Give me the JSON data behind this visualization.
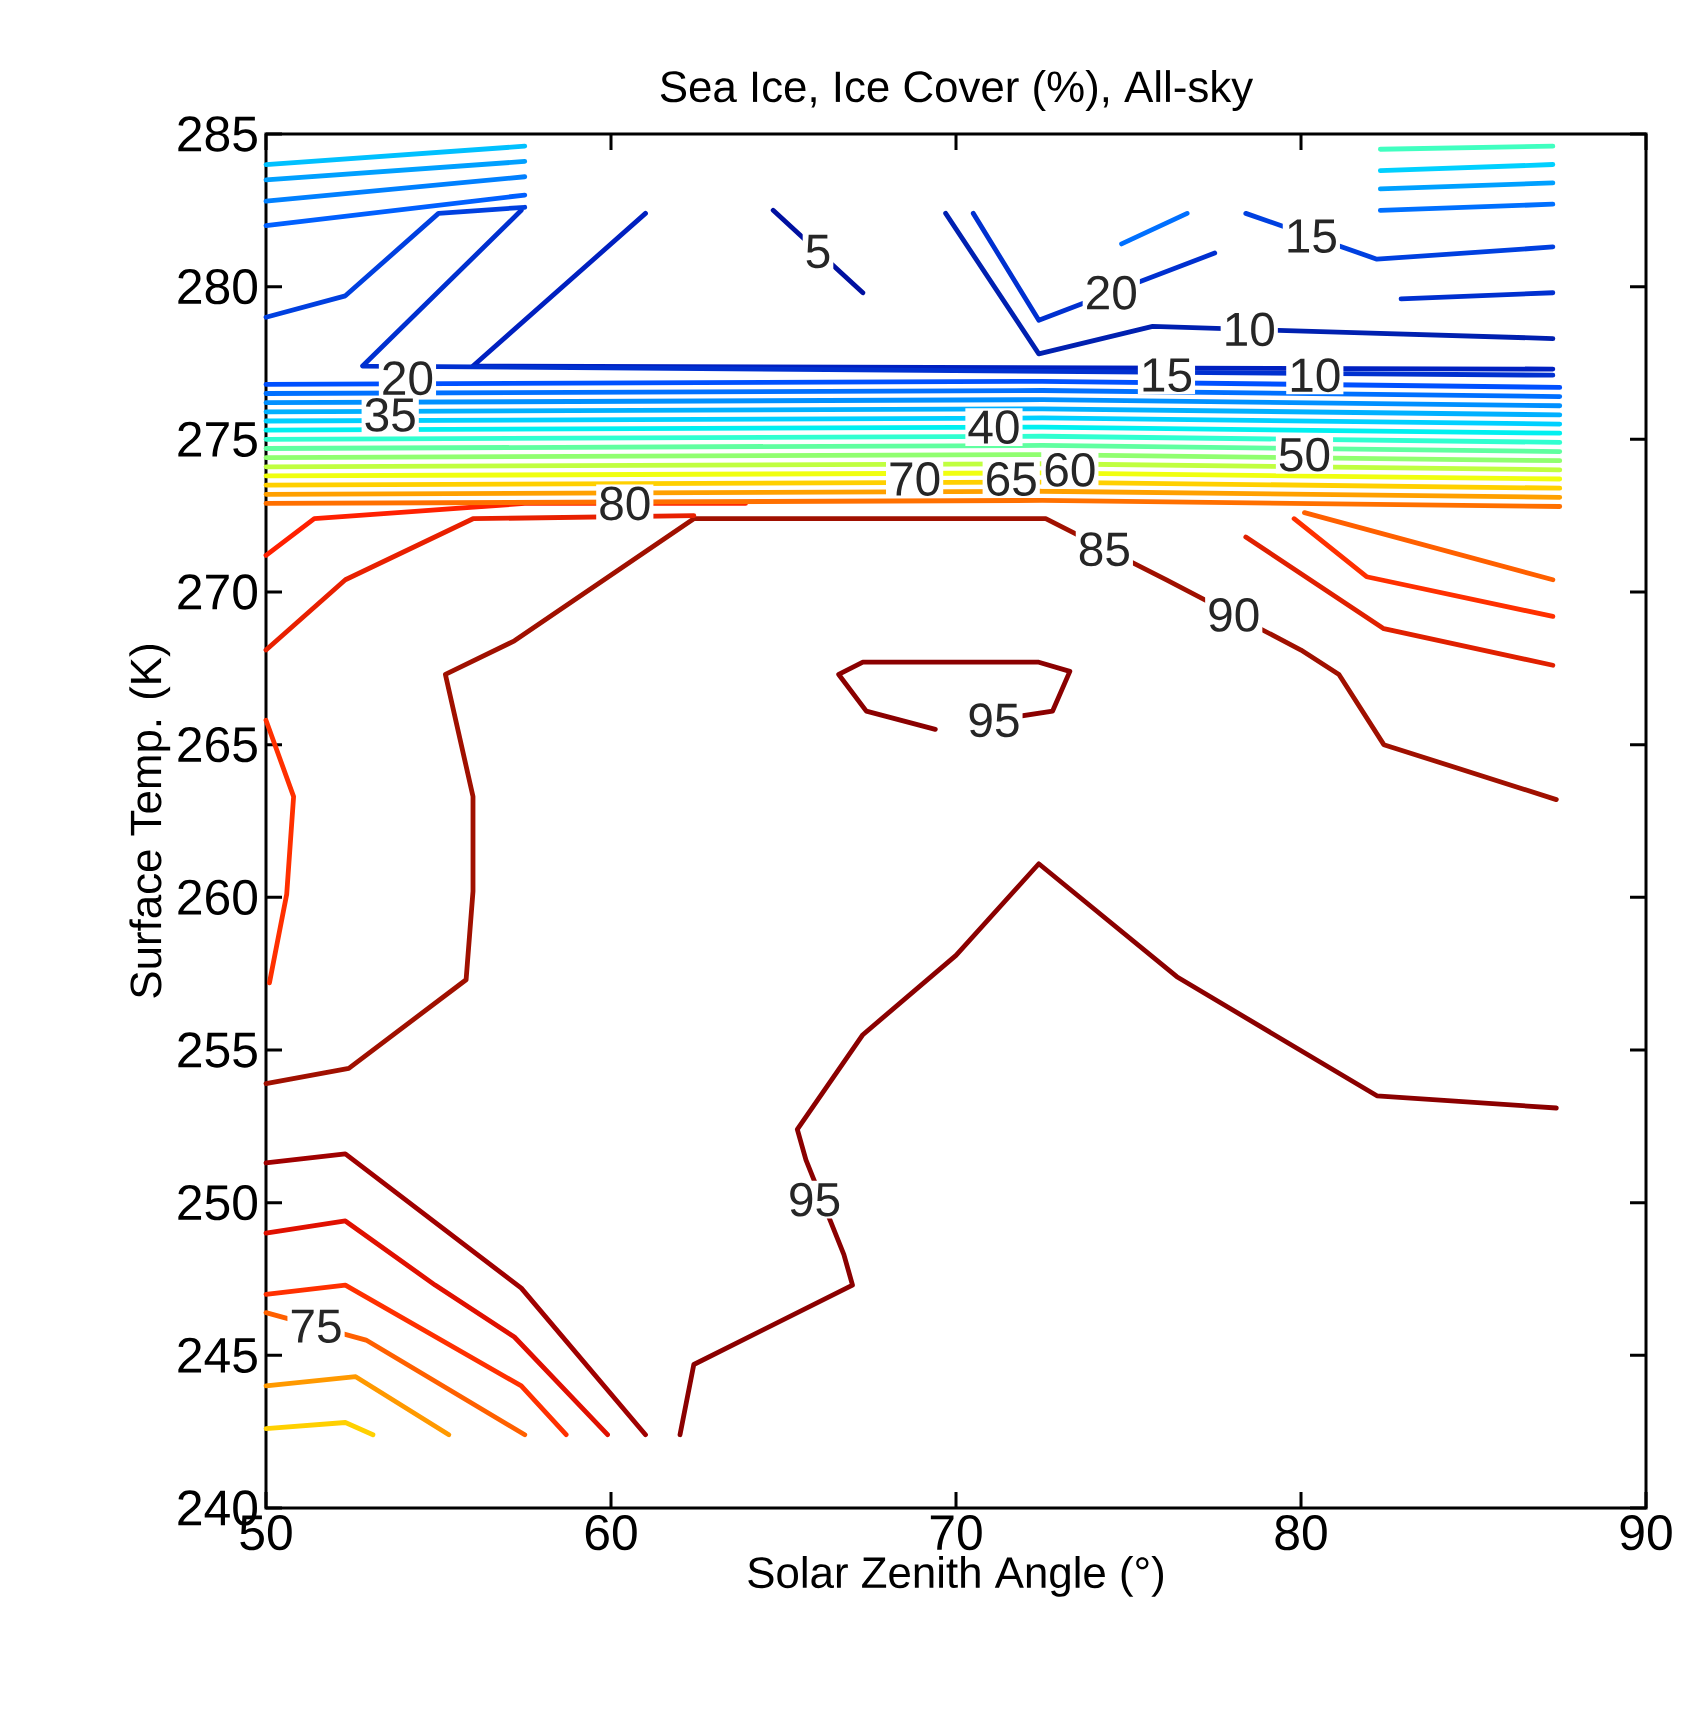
{
  "chart_data": {
    "type": "line",
    "title": "Sea Ice, Ice Cover (%), All-sky",
    "xlabel": "Solar Zenith Angle (°)",
    "ylabel": "Surface Temp. (K)",
    "xlim": [
      50,
      90
    ],
    "ylim": [
      240,
      285
    ],
    "xticks": [
      50,
      60,
      70,
      80,
      90
    ],
    "yticks": [
      240,
      245,
      250,
      255,
      260,
      265,
      270,
      275,
      280,
      285
    ],
    "series": [
      {
        "color": "#8b0000",
        "x": [
          62.0,
          62.4,
          67.0,
          66.75,
          65.65,
          65.4,
          67.3,
          70.0,
          72.4,
          76.4,
          82.2,
          87.4
        ],
        "values": [
          242.4,
          244.7,
          247.3,
          248.3,
          251.4,
          252.4,
          255.5,
          258.1,
          261.1,
          257.4,
          253.5,
          253.1
        ]
      },
      {
        "color": "#8b0000",
        "x": [
          69.4,
          67.4,
          66.6,
          67.3,
          72.4,
          73.3,
          72.8,
          71.1
        ],
        "values": [
          265.5,
          266.1,
          267.3,
          267.7,
          267.7,
          267.4,
          266.1,
          265.8
        ]
      },
      {
        "color": "#a01000",
        "x": [
          50,
          52.4,
          55.8,
          56.0,
          56.0,
          55.2,
          57.2,
          62.4,
          72.6,
          76.1,
          80.0,
          81.1,
          82.4,
          87.4
        ],
        "values": [
          253.9,
          254.4,
          257.3,
          260.2,
          263.3,
          267.3,
          268.4,
          272.4,
          272.4,
          270.4,
          268.1,
          267.3,
          265.0,
          263.2
        ]
      },
      {
        "color": "#e02000",
        "x": [
          78.4,
          82.4,
          87.3
        ],
        "values": [
          271.8,
          268.8,
          267.6
        ]
      },
      {
        "color": "#ff3000",
        "x": [
          79.8,
          81.9,
          87.3
        ],
        "values": [
          272.4,
          270.5,
          269.2
        ]
      },
      {
        "color": "#ff6000",
        "x": [
          80.1,
          87.3
        ],
        "values": [
          272.6,
          270.4
        ]
      },
      {
        "color": "#ff2000",
        "x": [
          50,
          51.4,
          57.5,
          63.9
        ],
        "values": [
          271.2,
          272.4,
          272.9,
          272.9
        ]
      },
      {
        "color": "#e82000",
        "x": [
          50,
          52.3,
          56.0,
          62.4
        ],
        "values": [
          268.1,
          270.4,
          272.4,
          272.5
        ]
      },
      {
        "color": "#ff3000",
        "x": [
          50,
          50.8,
          50.6,
          50.1
        ],
        "values": [
          265.8,
          263.3,
          260.1,
          257.2
        ]
      },
      {
        "color": "#a00000",
        "x": [
          50,
          52.3,
          57.4,
          61.0
        ],
        "values": [
          251.3,
          251.6,
          247.2,
          242.4
        ]
      },
      {
        "color": "#e01000",
        "x": [
          50,
          52.3,
          54.9,
          57.2,
          59.9
        ],
        "values": [
          249.0,
          249.4,
          247.3,
          245.6,
          242.4
        ]
      },
      {
        "color": "#ff3000",
        "x": [
          50,
          52.3,
          57.4,
          58.7
        ],
        "values": [
          247.0,
          247.3,
          244.0,
          242.4
        ]
      },
      {
        "color": "#ff6000",
        "x": [
          50,
          52.9,
          57.5
        ],
        "values": [
          246.4,
          245.5,
          242.4
        ]
      },
      {
        "color": "#ff9900",
        "x": [
          50,
          52.6,
          55.3
        ],
        "values": [
          244.0,
          244.3,
          242.4
        ]
      },
      {
        "color": "#ffd000",
        "x": [
          50,
          52.3,
          53.1
        ],
        "values": [
          242.6,
          242.8,
          242.4
        ]
      },
      {
        "color": "#0010a0",
        "x": [
          64.7,
          67.3
        ],
        "values": [
          282.5,
          279.8
        ]
      },
      {
        "color": "#0020c0",
        "x": [
          61.0,
          56.0,
          87.3
        ],
        "values": [
          282.4,
          277.4,
          277.3
        ]
      },
      {
        "color": "#0030d0",
        "x": [
          57.4,
          52.8,
          87.3
        ],
        "values": [
          282.5,
          277.4,
          277.1
        ]
      },
      {
        "color": "#0040e0",
        "x": [
          50,
          52.3,
          55.0,
          57.5
        ],
        "values": [
          279.0,
          279.7,
          282.4,
          282.6
        ]
      },
      {
        "color": "#0060ff",
        "x": [
          50,
          57.5
        ],
        "values": [
          282.0,
          283.0
        ]
      },
      {
        "color": "#0080ff",
        "x": [
          50,
          57.5
        ],
        "values": [
          282.8,
          283.6
        ]
      },
      {
        "color": "#00a0ff",
        "x": [
          50,
          57.5
        ],
        "values": [
          283.5,
          284.1
        ]
      },
      {
        "color": "#00c0ff",
        "x": [
          50,
          57.5
        ],
        "values": [
          284.0,
          284.6
        ]
      },
      {
        "color": "#0020b0",
        "x": [
          69.7,
          72.4,
          75.7,
          81.3,
          87.3
        ],
        "values": [
          282.4,
          277.8,
          278.7,
          278.5,
          278.3
        ]
      },
      {
        "color": "#0030d0",
        "x": [
          70.5,
          72.4,
          77.5
        ],
        "values": [
          282.4,
          278.9,
          281.1
        ]
      },
      {
        "color": "#0070ff",
        "x": [
          74.8,
          76.7
        ],
        "values": [
          281.4,
          282.4
        ]
      },
      {
        "color": "#0040e0",
        "x": [
          78.4,
          82.2,
          87.3
        ],
        "values": [
          282.4,
          280.9,
          281.3
        ]
      },
      {
        "color": "#0030d0",
        "x": [
          82.9,
          87.3
        ],
        "values": [
          279.6,
          279.8
        ]
      },
      {
        "color": "#0070ff",
        "x": [
          82.3,
          87.3
        ],
        "values": [
          282.5,
          282.7
        ]
      },
      {
        "color": "#00a0ff",
        "x": [
          82.3,
          87.3
        ],
        "values": [
          283.2,
          283.4
        ]
      },
      {
        "color": "#00d0ff",
        "x": [
          82.3,
          87.3
        ],
        "values": [
          283.8,
          284.0
        ]
      },
      {
        "color": "#40ffc0",
        "x": [
          82.3,
          87.3
        ],
        "values": [
          284.5,
          284.6
        ]
      },
      {
        "color": "#0050ff",
        "x": [
          50,
          72.5,
          87.5
        ],
        "values": [
          276.8,
          276.9,
          276.7
        ]
      },
      {
        "color": "#0070ff",
        "x": [
          50,
          72.5,
          87.5
        ],
        "values": [
          276.5,
          276.6,
          276.4
        ]
      },
      {
        "color": "#0090ff",
        "x": [
          50,
          72.5,
          87.5
        ],
        "values": [
          276.2,
          276.3,
          276.1
        ]
      },
      {
        "color": "#00b0ff",
        "x": [
          50,
          72.5,
          87.5
        ],
        "values": [
          275.9,
          276.0,
          275.8
        ]
      },
      {
        "color": "#00d0ff",
        "x": [
          50,
          72.5,
          87.5
        ],
        "values": [
          275.6,
          275.7,
          275.5
        ]
      },
      {
        "color": "#00f0f0",
        "x": [
          50,
          72.5,
          87.5
        ],
        "values": [
          275.3,
          275.4,
          275.2
        ]
      },
      {
        "color": "#30ffd0",
        "x": [
          50,
          72.5,
          87.5
        ],
        "values": [
          275.0,
          275.1,
          274.9
        ]
      },
      {
        "color": "#60ffa0",
        "x": [
          50,
          72.5,
          87.5
        ],
        "values": [
          274.7,
          274.8,
          274.6
        ]
      },
      {
        "color": "#90ff70",
        "x": [
          50,
          72.5,
          87.5
        ],
        "values": [
          274.4,
          274.5,
          274.3
        ]
      },
      {
        "color": "#c0ff40",
        "x": [
          50,
          72.5,
          87.5
        ],
        "values": [
          274.1,
          274.2,
          274.0
        ]
      },
      {
        "color": "#f0ff10",
        "x": [
          50,
          72.5,
          87.5
        ],
        "values": [
          273.8,
          273.9,
          273.7
        ]
      },
      {
        "color": "#ffd000",
        "x": [
          50,
          72.5,
          87.5
        ],
        "values": [
          273.5,
          273.6,
          273.4
        ]
      },
      {
        "color": "#ffa000",
        "x": [
          50,
          72.5,
          87.5
        ],
        "values": [
          273.2,
          273.3,
          273.1
        ]
      },
      {
        "color": "#ff7000",
        "x": [
          50,
          72.5,
          87.5
        ],
        "values": [
          272.9,
          273.0,
          272.8
        ]
      }
    ],
    "annotations": [
      {
        "text": "5",
        "x": 66.0,
        "y": 281.15
      },
      {
        "text": "20",
        "x": 74.5,
        "y": 279.8
      },
      {
        "text": "15",
        "x": 80.3,
        "y": 281.65
      },
      {
        "text": "10",
        "x": 78.5,
        "y": 278.6
      },
      {
        "text": "10",
        "x": 80.4,
        "y": 277.1
      },
      {
        "text": "15",
        "x": 76.1,
        "y": 277.1
      },
      {
        "text": "20",
        "x": 54.1,
        "y": 277.0
      },
      {
        "text": "35",
        "x": 53.6,
        "y": 275.8
      },
      {
        "text": "40",
        "x": 71.1,
        "y": 275.4
      },
      {
        "text": "70",
        "x": 68.8,
        "y": 273.7
      },
      {
        "text": "65",
        "x": 71.6,
        "y": 273.7
      },
      {
        "text": "60",
        "x": 73.3,
        "y": 274.0
      },
      {
        "text": "50",
        "x": 80.1,
        "y": 274.5
      },
      {
        "text": "80",
        "x": 60.4,
        "y": 272.9
      },
      {
        "text": "85",
        "x": 74.3,
        "y": 271.4
      },
      {
        "text": "90",
        "x": 78.05,
        "y": 269.25
      },
      {
        "text": "95",
        "x": 71.1,
        "y": 265.8
      },
      {
        "text": "95",
        "x": 65.9,
        "y": 250.1
      },
      {
        "text": "75",
        "x": 51.45,
        "y": 245.95
      }
    ]
  }
}
